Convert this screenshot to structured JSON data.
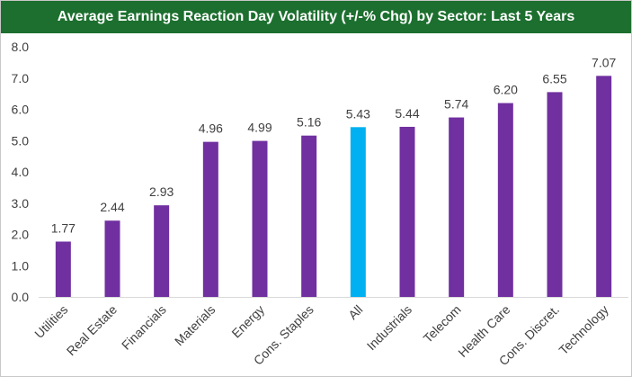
{
  "chart_data": {
    "type": "bar",
    "title": "Average Earnings Reaction Day Volatility (+/-% Chg) by Sector: Last 5 Years",
    "categories": [
      "Utilities",
      "Real Estate",
      "Financials",
      "Materials",
      "Energy",
      "Cons. Staples",
      "All",
      "Industrials",
      "Telecom",
      "Health Care",
      "Cons. Discret.",
      "Technology"
    ],
    "values": [
      1.77,
      2.44,
      2.93,
      4.96,
      4.99,
      5.16,
      5.43,
      5.44,
      5.74,
      6.2,
      6.55,
      7.07
    ],
    "value_labels": [
      "1.77",
      "2.44",
      "2.93",
      "4.96",
      "4.99",
      "5.16",
      "5.43",
      "5.44",
      "5.74",
      "6.20",
      "6.55",
      "7.07"
    ],
    "y_ticks": [
      "0.0",
      "1.0",
      "2.0",
      "3.0",
      "4.0",
      "5.0",
      "6.0",
      "7.0",
      "8.0"
    ],
    "ylim": [
      0,
      8
    ],
    "xlabel": "",
    "ylabel": "",
    "grid": false,
    "legend": "none",
    "colors": {
      "bar": "#7030a0",
      "highlight": "#00b0f0",
      "highlight_category": "All",
      "title_bg": "#1c6f2e"
    }
  }
}
